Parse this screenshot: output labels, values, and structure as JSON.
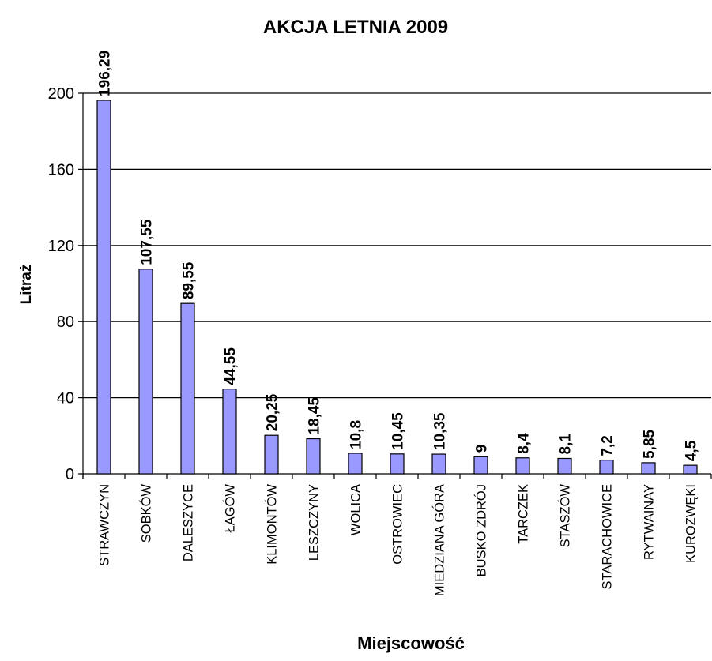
{
  "chart_data": {
    "type": "bar",
    "title": "AKCJA LETNIA 2009",
    "xlabel": "Miejscowość",
    "ylabel": "Litraż",
    "ylim": [
      0,
      200
    ],
    "yticks": [
      0,
      40,
      80,
      120,
      160,
      200
    ],
    "grid": true,
    "legend": "none",
    "bar_color": "#9999ff",
    "categories": [
      "STRAWCZYN",
      "SOBKÓW",
      "DALESZYCE",
      "ŁAGÓW",
      "KLIMONTÓW",
      "LESZCZYNY",
      "WOLICA",
      "OSTROWIEC",
      "MIEDZIANA GÓRA",
      "BUSKO ZDRÓJ",
      "TARCZEK",
      "STASZÓW",
      "STARACHOWICE",
      "RYTWAINAY",
      "KUROZWĘKI"
    ],
    "values": [
      196.29,
      107.55,
      89.55,
      44.55,
      20.25,
      18.45,
      10.8,
      10.45,
      10.35,
      9,
      8.4,
      8.1,
      7.2,
      5.85,
      4.5
    ],
    "data_labels": [
      "196,29",
      "107,55",
      "89,55",
      "44,55",
      "20,25",
      "18,45",
      "10,8",
      "10,45",
      "10,35",
      "9",
      "8,4",
      "8,1",
      "7,2",
      "5,85",
      "4,5"
    ]
  }
}
